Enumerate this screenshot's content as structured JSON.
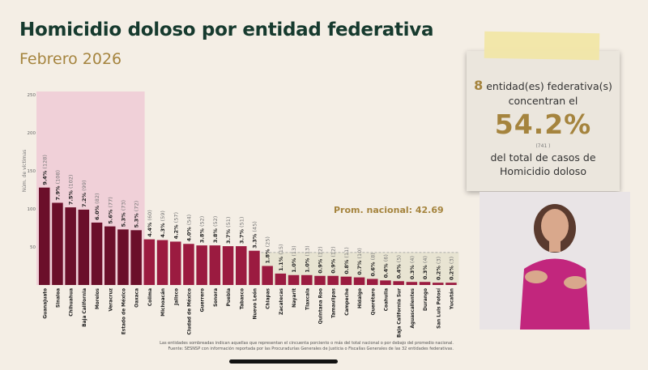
{
  "header": {
    "title": "Homicidio doloso por entidad federativa",
    "subtitle": "Febrero 2026"
  },
  "chart_data": {
    "type": "bar",
    "title": "Homicidio doloso por entidad federativa",
    "ylabel": "Núm. de víctimas",
    "ylim": [
      0,
      250
    ],
    "yticks": [
      50,
      100,
      150,
      200,
      250
    ],
    "categories": [
      "Guanajuato",
      "Sinaloa",
      "Chihuahua",
      "Baja California",
      "Morelos",
      "Veracruz",
      "Estado de México",
      "Oaxaca",
      "Colima",
      "Michoacán",
      "Jalisco",
      "Ciudad de México",
      "Guerrero",
      "Sonora",
      "Puebla",
      "Tabasco",
      "Nuevo León",
      "Chiapas",
      "Zacatecas",
      "Nayarit",
      "Tlaxcala",
      "Quintana Roo",
      "Tamaulipas",
      "Campeche",
      "Hidalgo",
      "Querétaro",
      "Coahuila",
      "Baja California Sur",
      "Aguascalientes",
      "Durango",
      "San Luis Potosí",
      "Yucatán"
    ],
    "values": [
      128,
      108,
      102,
      99,
      82,
      77,
      73,
      72,
      60,
      59,
      57,
      54,
      52,
      52,
      51,
      51,
      45,
      25,
      15,
      13,
      13,
      12,
      12,
      11,
      10,
      8,
      6,
      5,
      4,
      4,
      3,
      3
    ],
    "percent_labels": [
      "9.4%",
      "7.9%",
      "7.5%",
      "7.2%",
      "6.0%",
      "5.6%",
      "5.3%",
      "5.3%",
      "4.4%",
      "4.3%",
      "4.2%",
      "4.0%",
      "3.8%",
      "3.8%",
      "3.7%",
      "3.7%",
      "3.3%",
      "1.8%",
      "1.1%",
      "1.0%",
      "1.0%",
      "0.9%",
      "0.9%",
      "0.8%",
      "0.7%",
      "0.6%",
      "0.4%",
      "0.4%",
      "0.3%",
      "0.3%",
      "0.2%",
      "0.2%"
    ],
    "national_average": 42.69,
    "average_label": "Prom. nacional: 42.69",
    "highlight_top_count": 8,
    "colors": {
      "top": "#6b0f2a",
      "rest": "#9b1b40",
      "highlight": "#f0d0d8",
      "below_avg_band": "#e8e4d2",
      "avg_text": "#a5843e"
    }
  },
  "summary": {
    "count": "8",
    "text1": " entidad(es) federativa(s)",
    "text2": "concentran el",
    "percent": "54.2%",
    "cases": "(741 )",
    "text3": "del total de casos de",
    "text4": "Homicidio doloso"
  },
  "footnote": {
    "line1": "Las entidades sombreadas indican aquellas que representan el cincuenta porciento o más del total nacional o por debajo del promedio nacional.",
    "line2": "Fuente: SESNSP con información reportada por las Procuradurías Generales de Justicia o Fiscalías Generales de las 32 entidades federativas."
  }
}
